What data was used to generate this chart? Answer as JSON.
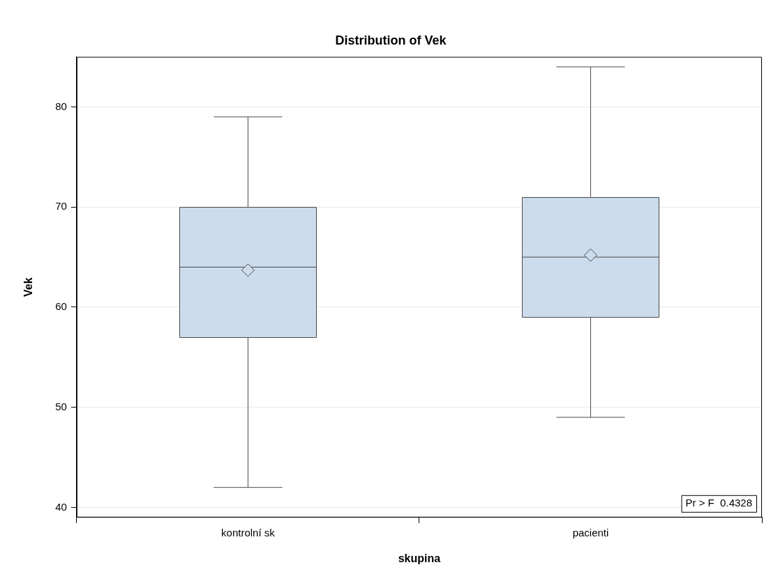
{
  "chart_data": {
    "type": "box",
    "title": "Distribution of Vek",
    "xlabel": "skupina",
    "ylabel": "Vek",
    "categories": [
      "kontrolní sk",
      "pacienti"
    ],
    "series": [
      {
        "color": "#cddcec",
        "boxes": [
          {
            "low": 42,
            "q1": 57,
            "median": 64,
            "q3": 70,
            "high": 79,
            "mean": 63.7
          },
          {
            "low": 49,
            "q1": 59,
            "median": 65,
            "q3": 71,
            "high": 84,
            "mean": 65.2
          }
        ]
      }
    ],
    "ylim": [
      39,
      85
    ],
    "yticks": [
      40,
      50,
      60,
      70,
      80
    ],
    "grid": "y",
    "marker": "diamond",
    "annotations": [
      "Pr > F  0.4328"
    ]
  }
}
